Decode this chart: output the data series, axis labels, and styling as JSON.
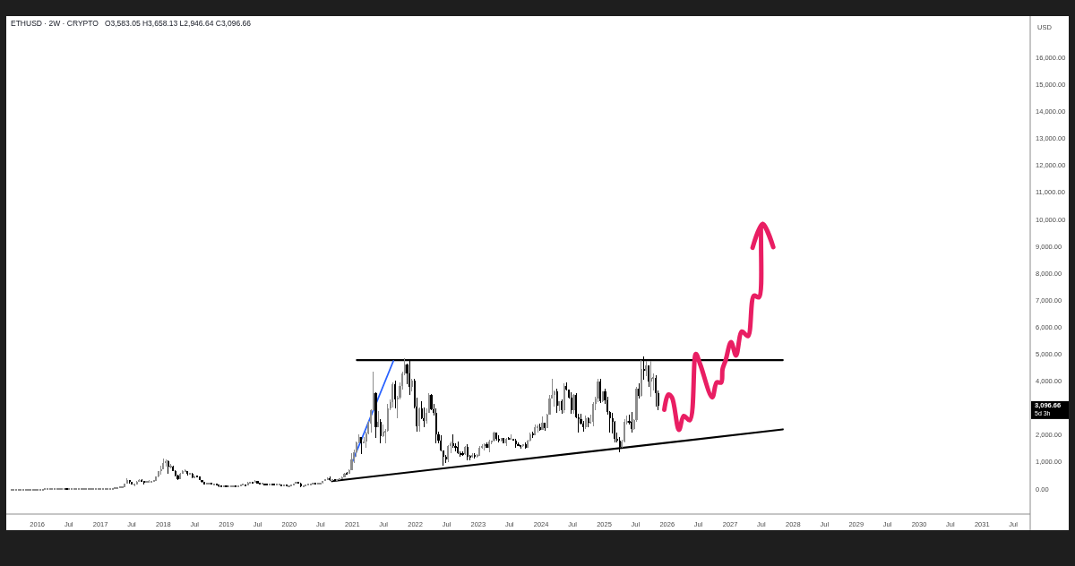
{
  "chart_data": {
    "type": "candlestick",
    "title": "ETHUSD · 2W · CRYPTO",
    "subtitle": "O3,583.05 H3,658.13 L2,946.64 C3,096.66",
    "ylabel": "USD",
    "x": [
      "2015-08-03",
      "2015-08-17",
      "2015-08-31",
      "2015-09-14",
      "2015-09-28",
      "2015-10-12",
      "2015-10-26",
      "2015-11-09",
      "2015-11-23",
      "2015-12-07",
      "2015-12-21",
      "2016-01-04",
      "2016-01-18",
      "2016-02-01",
      "2016-02-15",
      "2016-02-29",
      "2016-03-14",
      "2016-03-28",
      "2016-04-11",
      "2016-04-25",
      "2016-05-09",
      "2016-05-23",
      "2016-06-06",
      "2016-06-20",
      "2016-07-04",
      "2016-07-18",
      "2016-08-01",
      "2016-08-15",
      "2016-08-29",
      "2016-09-12",
      "2016-09-26",
      "2016-10-10",
      "2016-10-24",
      "2016-11-07",
      "2016-11-21",
      "2016-12-05",
      "2016-12-19",
      "2017-01-02",
      "2017-01-16",
      "2017-01-30",
      "2017-02-13",
      "2017-02-27",
      "2017-03-13",
      "2017-03-27",
      "2017-04-10",
      "2017-04-24",
      "2017-05-08",
      "2017-05-22",
      "2017-06-05",
      "2017-06-19",
      "2017-07-03",
      "2017-07-17",
      "2017-07-31",
      "2017-08-14",
      "2017-08-28",
      "2017-09-11",
      "2017-09-25",
      "2017-10-09",
      "2017-10-23",
      "2017-11-06",
      "2017-11-20",
      "2017-12-04",
      "2017-12-18",
      "2018-01-01",
      "2018-01-15",
      "2018-01-29",
      "2018-02-12",
      "2018-02-26",
      "2018-03-12",
      "2018-03-26",
      "2018-04-09",
      "2018-04-23",
      "2018-05-07",
      "2018-05-21",
      "2018-06-04",
      "2018-06-18",
      "2018-07-02",
      "2018-07-16",
      "2018-07-30",
      "2018-08-13",
      "2018-08-27",
      "2018-09-10",
      "2018-09-24",
      "2018-10-08",
      "2018-10-22",
      "2018-11-05",
      "2018-11-19",
      "2018-12-03",
      "2018-12-17",
      "2018-12-31",
      "2019-01-14",
      "2019-01-28",
      "2019-02-11",
      "2019-02-25",
      "2019-03-11",
      "2019-03-25",
      "2019-04-08",
      "2019-04-22",
      "2019-05-06",
      "2019-05-20",
      "2019-06-03",
      "2019-06-17",
      "2019-07-01",
      "2019-07-15",
      "2019-07-29",
      "2019-08-12",
      "2019-08-26",
      "2019-09-09",
      "2019-09-23",
      "2019-10-07",
      "2019-10-21",
      "2019-11-04",
      "2019-11-18",
      "2019-12-02",
      "2019-12-16",
      "2019-12-30",
      "2020-01-13",
      "2020-01-27",
      "2020-02-10",
      "2020-02-24",
      "2020-03-09",
      "2020-03-23",
      "2020-04-06",
      "2020-04-20",
      "2020-05-04",
      "2020-05-18",
      "2020-06-01",
      "2020-06-15",
      "2020-06-29",
      "2020-07-13",
      "2020-07-27",
      "2020-08-10",
      "2020-08-24",
      "2020-09-07",
      "2020-09-21",
      "2020-10-05",
      "2020-10-19",
      "2020-11-02",
      "2020-11-16",
      "2020-11-30",
      "2020-12-14",
      "2020-12-28",
      "2021-01-11",
      "2021-01-25",
      "2021-02-08",
      "2021-02-22",
      "2021-03-08",
      "2021-03-22",
      "2021-04-05",
      "2021-04-19",
      "2021-05-03",
      "2021-05-17",
      "2021-05-31",
      "2021-06-14",
      "2021-06-28",
      "2021-07-12",
      "2021-07-26",
      "2021-08-09",
      "2021-08-23",
      "2021-09-06",
      "2021-09-20",
      "2021-10-04",
      "2021-10-18",
      "2021-11-01",
      "2021-11-15",
      "2021-11-29",
      "2021-12-13",
      "2021-12-27",
      "2022-01-10",
      "2022-01-24",
      "2022-02-07",
      "2022-02-21",
      "2022-03-07",
      "2022-03-21",
      "2022-04-04",
      "2022-04-18",
      "2022-05-02",
      "2022-05-16",
      "2022-05-30",
      "2022-06-13",
      "2022-06-27",
      "2022-07-11",
      "2022-07-25",
      "2022-08-08",
      "2022-08-22",
      "2022-09-05",
      "2022-09-19",
      "2022-10-03",
      "2022-10-17",
      "2022-10-31",
      "2022-11-14",
      "2022-11-28",
      "2022-12-12",
      "2022-12-26",
      "2023-01-09",
      "2023-01-23",
      "2023-02-06",
      "2023-02-20",
      "2023-03-06",
      "2023-03-20",
      "2023-04-03",
      "2023-04-17",
      "2023-05-01",
      "2023-05-15",
      "2023-05-29",
      "2023-06-12",
      "2023-06-26",
      "2023-07-10",
      "2023-07-24",
      "2023-08-07",
      "2023-08-21",
      "2023-09-04",
      "2023-09-18",
      "2023-10-02",
      "2023-10-16",
      "2023-10-30",
      "2023-11-13",
      "2023-11-27",
      "2023-12-11",
      "2023-12-25",
      "2024-01-08",
      "2024-01-22",
      "2024-02-05",
      "2024-02-19",
      "2024-03-04",
      "2024-03-18",
      "2024-04-01",
      "2024-04-15",
      "2024-04-29",
      "2024-05-13",
      "2024-05-27",
      "2024-06-10",
      "2024-06-24",
      "2024-07-08",
      "2024-07-22",
      "2024-08-05",
      "2024-08-19",
      "2024-09-02",
      "2024-09-16",
      "2024-09-30",
      "2024-10-14",
      "2024-10-28",
      "2024-11-11",
      "2024-11-25",
      "2024-12-09",
      "2024-12-23",
      "2025-01-06",
      "2025-01-20",
      "2025-02-03",
      "2025-02-17",
      "2025-03-03",
      "2025-03-17",
      "2025-03-31",
      "2025-04-14",
      "2025-04-28",
      "2025-05-12",
      "2025-05-26",
      "2025-06-09",
      "2025-06-23",
      "2025-07-07",
      "2025-07-21",
      "2025-08-04",
      "2025-08-18",
      "2025-09-01",
      "2025-09-15",
      "2025-09-29",
      "2025-10-13",
      "2025-10-27",
      "2025-11-10"
    ],
    "ohlc": [
      [
        0,
        0,
        0,
        0
      ],
      [
        0,
        0,
        0,
        0
      ],
      [
        0,
        0,
        0,
        0
      ],
      [
        0,
        0,
        0,
        0
      ],
      [
        0,
        0,
        0,
        0
      ],
      [
        0,
        0,
        0,
        0
      ],
      [
        0,
        0,
        0,
        0
      ],
      [
        0,
        0,
        0,
        0
      ],
      [
        0,
        0,
        0,
        0
      ],
      [
        0,
        0,
        0,
        0
      ],
      [
        0,
        0,
        0,
        0
      ],
      [
        0,
        0,
        0,
        0
      ],
      [
        0,
        0,
        0,
        0
      ],
      [
        0,
        0,
        0,
        0
      ],
      [
        0,
        10,
        0,
        10
      ],
      [
        10,
        20,
        10,
        10
      ],
      [
        10,
        20,
        10,
        10
      ],
      [
        10,
        10,
        10,
        10
      ],
      [
        10,
        10,
        10,
        10
      ],
      [
        10,
        10,
        10,
        10
      ],
      [
        10,
        10,
        10,
        10
      ],
      [
        10,
        10,
        10,
        10
      ],
      [
        10,
        20,
        10,
        20
      ],
      [
        20,
        20,
        10,
        10
      ],
      [
        10,
        10,
        10,
        10
      ],
      [
        10,
        10,
        10,
        10
      ],
      [
        10,
        10,
        10,
        10
      ],
      [
        10,
        10,
        10,
        10
      ],
      [
        10,
        10,
        10,
        10
      ],
      [
        10,
        10,
        10,
        10
      ],
      [
        10,
        10,
        10,
        10
      ],
      [
        10,
        10,
        10,
        10
      ],
      [
        10,
        10,
        10,
        10
      ],
      [
        10,
        10,
        10,
        10
      ],
      [
        10,
        10,
        10,
        10
      ],
      [
        10,
        10,
        10,
        10
      ],
      [
        10,
        10,
        10,
        10
      ],
      [
        10,
        10,
        10,
        10
      ],
      [
        10,
        10,
        10,
        10
      ],
      [
        10,
        10,
        10,
        10
      ],
      [
        10,
        10,
        10,
        10
      ],
      [
        10,
        20,
        10,
        20
      ],
      [
        20,
        50,
        20,
        40
      ],
      [
        40,
        50,
        40,
        50
      ],
      [
        50,
        50,
        40,
        50
      ],
      [
        50,
        90,
        50,
        90
      ],
      [
        90,
        100,
        80,
        100
      ],
      [
        100,
        230,
        100,
        230
      ],
      [
        230,
        420,
        230,
        360
      ],
      [
        360,
        360,
        220,
        300
      ],
      [
        300,
        300,
        190,
        200
      ],
      [
        200,
        230,
        130,
        200
      ],
      [
        200,
        320,
        200,
        300
      ],
      [
        300,
        370,
        280,
        350
      ],
      [
        350,
        390,
        280,
        300
      ],
      [
        300,
        300,
        200,
        290
      ],
      [
        290,
        310,
        280,
        300
      ],
      [
        300,
        340,
        290,
        300
      ],
      [
        300,
        310,
        290,
        300
      ],
      [
        300,
        340,
        290,
        330
      ],
      [
        330,
        480,
        330,
        470
      ],
      [
        470,
        700,
        440,
        690
      ],
      [
        690,
        880,
        560,
        750
      ],
      [
        750,
        1150,
        740,
        1000
      ],
      [
        1000,
        1100,
        850,
        1050
      ],
      [
        1050,
        1080,
        570,
        850
      ],
      [
        850,
        960,
        780,
        860
      ],
      [
        860,
        880,
        680,
        700
      ],
      [
        700,
        720,
        480,
        520
      ],
      [
        520,
        560,
        360,
        400
      ],
      [
        400,
        620,
        380,
        590
      ],
      [
        590,
        720,
        590,
        690
      ],
      [
        690,
        760,
        640,
        690
      ],
      [
        690,
        700,
        520,
        580
      ],
      [
        580,
        630,
        560,
        600
      ],
      [
        600,
        610,
        420,
        450
      ],
      [
        450,
        510,
        440,
        480
      ],
      [
        480,
        510,
        440,
        470
      ],
      [
        470,
        470,
        340,
        350
      ],
      [
        350,
        350,
        250,
        290
      ],
      [
        290,
        300,
        190,
        200
      ],
      [
        200,
        230,
        170,
        220
      ],
      [
        220,
        240,
        200,
        230
      ],
      [
        230,
        230,
        190,
        200
      ],
      [
        200,
        210,
        190,
        200
      ],
      [
        200,
        220,
        170,
        180
      ],
      [
        180,
        180,
        100,
        120
      ],
      [
        120,
        120,
        80,
        90
      ],
      [
        90,
        150,
        80,
        130
      ],
      [
        130,
        160,
        110,
        120
      ],
      [
        120,
        130,
        110,
        120
      ],
      [
        120,
        120,
        100,
        120
      ],
      [
        120,
        160,
        120,
        140
      ],
      [
        140,
        140,
        120,
        130
      ],
      [
        130,
        150,
        130,
        140
      ],
      [
        140,
        190,
        130,
        170
      ],
      [
        170,
        190,
        160,
        170
      ],
      [
        170,
        180,
        150,
        160
      ],
      [
        160,
        280,
        160,
        250
      ],
      [
        250,
        290,
        230,
        270
      ],
      [
        270,
        280,
        220,
        260
      ],
      [
        260,
        360,
        260,
        310
      ],
      [
        310,
        320,
        220,
        230
      ],
      [
        230,
        240,
        190,
        210
      ],
      [
        210,
        240,
        200,
        210
      ],
      [
        210,
        220,
        170,
        190
      ],
      [
        190,
        190,
        160,
        180
      ],
      [
        180,
        220,
        170,
        200
      ],
      [
        200,
        200,
        150,
        180
      ],
      [
        180,
        200,
        160,
        170
      ],
      [
        170,
        200,
        160,
        180
      ],
      [
        180,
        200,
        170,
        180
      ],
      [
        180,
        180,
        140,
        150
      ],
      [
        150,
        160,
        140,
        150
      ],
      [
        150,
        150,
        120,
        130
      ],
      [
        130,
        150,
        130,
        140
      ],
      [
        140,
        180,
        140,
        170
      ],
      [
        170,
        230,
        170,
        220
      ],
      [
        220,
        290,
        220,
        270
      ],
      [
        270,
        270,
        210,
        230
      ],
      [
        230,
        240,
        90,
        130
      ],
      [
        130,
        150,
        120,
        140
      ],
      [
        140,
        190,
        140,
        170
      ],
      [
        170,
        220,
        170,
        200
      ],
      [
        200,
        220,
        180,
        200
      ],
      [
        200,
        250,
        200,
        240
      ],
      [
        240,
        250,
        220,
        230
      ],
      [
        230,
        250,
        220,
        230
      ],
      [
        230,
        250,
        220,
        240
      ],
      [
        240,
        330,
        230,
        320
      ],
      [
        320,
        400,
        320,
        380
      ],
      [
        380,
        440,
        370,
        390
      ],
      [
        390,
        490,
        310,
        350
      ],
      [
        350,
        390,
        320,
        380
      ],
      [
        380,
        390,
        310,
        350
      ],
      [
        350,
        390,
        340,
        380
      ],
      [
        380,
        420,
        370,
        390
      ],
      [
        390,
        470,
        370,
        460
      ],
      [
        460,
        620,
        440,
        600
      ],
      [
        600,
        640,
        540,
        590
      ],
      [
        590,
        750,
        580,
        730
      ],
      [
        730,
        1350,
        710,
        1100
      ],
      [
        1100,
        1480,
        1000,
        1380
      ],
      [
        1380,
        1780,
        1230,
        1740
      ],
      [
        1740,
        2040,
        1700,
        1940
      ],
      [
        1940,
        1950,
        1300,
        1720
      ],
      [
        1720,
        1950,
        1720,
        1780
      ],
      [
        1780,
        2150,
        1550,
        2080
      ],
      [
        2080,
        2550,
        2040,
        2440
      ],
      [
        2440,
        2980,
        2100,
        2950
      ],
      [
        2950,
        4380,
        2950,
        3580
      ],
      [
        3580,
        3600,
        1900,
        2300
      ],
      [
        2300,
        2900,
        2300,
        2500
      ],
      [
        2500,
        2600,
        1700,
        1980
      ],
      [
        1980,
        2400,
        1960,
        2130
      ],
      [
        2130,
        2260,
        1720,
        2190
      ],
      [
        2190,
        3180,
        2150,
        3010
      ],
      [
        3010,
        3330,
        2950,
        3240
      ],
      [
        3240,
        3970,
        3050,
        3900
      ],
      [
        3900,
        4030,
        3000,
        3330
      ],
      [
        3330,
        3480,
        2650,
        3420
      ],
      [
        3420,
        3970,
        3330,
        3850
      ],
      [
        3850,
        4380,
        3700,
        4300
      ],
      [
        4300,
        4870,
        4250,
        4650
      ],
      [
        4650,
        4660,
        3920,
        4300
      ],
      [
        4300,
        4780,
        3500,
        3800
      ],
      [
        3800,
        4120,
        3650,
        4050
      ],
      [
        4050,
        4100,
        3000,
        3080
      ],
      [
        3080,
        3420,
        2160,
        2330
      ],
      [
        2330,
        3050,
        2160,
        3000
      ],
      [
        3000,
        3280,
        2600,
        2630
      ],
      [
        2630,
        3050,
        2300,
        2550
      ],
      [
        2550,
        3000,
        2440,
        2860
      ],
      [
        2860,
        3580,
        2860,
        3520
      ],
      [
        3520,
        3550,
        2950,
        2990
      ],
      [
        2990,
        3190,
        2760,
        2830
      ],
      [
        2830,
        3000,
        1700,
        2050
      ],
      [
        2050,
        2160,
        1730,
        1820
      ],
      [
        1820,
        2000,
        1420,
        1440
      ],
      [
        1440,
        1450,
        880,
        1200
      ],
      [
        1200,
        1280,
        1000,
        1100
      ],
      [
        1100,
        1660,
        1020,
        1620
      ],
      [
        1620,
        1790,
        1350,
        1700
      ],
      [
        1700,
        2030,
        1560,
        1620
      ],
      [
        1620,
        1720,
        1420,
        1570
      ],
      [
        1570,
        1790,
        1300,
        1340
      ],
      [
        1340,
        1400,
        1220,
        1320
      ],
      [
        1320,
        1400,
        1260,
        1300
      ],
      [
        1300,
        1630,
        1270,
        1570
      ],
      [
        1570,
        1680,
        1070,
        1220
      ],
      [
        1220,
        1290,
        1080,
        1200
      ],
      [
        1200,
        1350,
        1190,
        1270
      ],
      [
        1270,
        1350,
        1160,
        1220
      ],
      [
        1220,
        1300,
        1190,
        1260
      ],
      [
        1260,
        1600,
        1260,
        1550
      ],
      [
        1550,
        1680,
        1520,
        1630
      ],
      [
        1630,
        1700,
        1460,
        1690
      ],
      [
        1690,
        1750,
        1540,
        1560
      ],
      [
        1560,
        1840,
        1370,
        1790
      ],
      [
        1790,
        1830,
        1680,
        1800
      ],
      [
        1800,
        2130,
        1770,
        2100
      ],
      [
        2100,
        2120,
        1800,
        1880
      ],
      [
        1880,
        2020,
        1760,
        1800
      ],
      [
        1800,
        1930,
        1780,
        1900
      ],
      [
        1900,
        1930,
        1700,
        1720
      ],
      [
        1720,
        1900,
        1620,
        1880
      ],
      [
        1880,
        1960,
        1840,
        1870
      ],
      [
        1870,
        2030,
        1850,
        1890
      ],
      [
        1890,
        1890,
        1820,
        1830
      ],
      [
        1830,
        1870,
        1550,
        1670
      ],
      [
        1670,
        1750,
        1610,
        1630
      ],
      [
        1630,
        1660,
        1530,
        1620
      ],
      [
        1620,
        1680,
        1570,
        1680
      ],
      [
        1680,
        1750,
        1520,
        1550
      ],
      [
        1550,
        1860,
        1540,
        1810
      ],
      [
        1810,
        2100,
        1780,
        2050
      ],
      [
        2050,
        2140,
        1930,
        2020
      ],
      [
        2020,
        2420,
        2000,
        2300
      ],
      [
        2300,
        2400,
        2120,
        2300
      ],
      [
        2300,
        2450,
        2170,
        2210
      ],
      [
        2210,
        2720,
        2200,
        2470
      ],
      [
        2470,
        2480,
        2170,
        2290
      ],
      [
        2290,
        2800,
        2290,
        2780
      ],
      [
        2780,
        3520,
        2780,
        3380
      ],
      [
        3380,
        4090,
        3360,
        3520
      ],
      [
        3520,
        3680,
        3060,
        3640
      ],
      [
        3640,
        3730,
        2850,
        3100
      ],
      [
        3100,
        3290,
        2900,
        3260
      ],
      [
        3260,
        3350,
        2810,
        2930
      ],
      [
        2930,
        3940,
        2860,
        3830
      ],
      [
        3830,
        3980,
        3660,
        3700
      ],
      [
        3700,
        3720,
        3360,
        3420
      ],
      [
        3420,
        3600,
        2820,
        2930
      ],
      [
        2930,
        3530,
        2820,
        3520
      ],
      [
        3520,
        3560,
        2630,
        2690
      ],
      [
        2690,
        2800,
        2110,
        2610
      ],
      [
        2610,
        2820,
        2400,
        2430
      ],
      [
        2430,
        2560,
        2150,
        2310
      ],
      [
        2310,
        2730,
        2260,
        2660
      ],
      [
        2660,
        2670,
        2310,
        2470
      ],
      [
        2470,
        2770,
        2450,
        2510
      ],
      [
        2510,
        3250,
        2350,
        3180
      ],
      [
        3180,
        3450,
        2960,
        3360
      ],
      [
        3360,
        4090,
        3250,
        4000
      ],
      [
        4000,
        4110,
        3210,
        3280
      ],
      [
        3280,
        3640,
        3250,
        3640
      ],
      [
        3640,
        3750,
        3160,
        3310
      ],
      [
        3310,
        3450,
        2780,
        2870
      ],
      [
        2870,
        2920,
        2120,
        2660
      ],
      [
        2660,
        2850,
        2080,
        2510
      ],
      [
        2510,
        2550,
        1760,
        1890
      ],
      [
        1890,
        2110,
        1760,
        1800
      ],
      [
        1800,
        1960,
        1390,
        1580
      ],
      [
        1580,
        1860,
        1540,
        1790
      ],
      [
        1790,
        2620,
        1750,
        2510
      ],
      [
        2510,
        2740,
        2400,
        2530
      ],
      [
        2530,
        2790,
        2400,
        2510
      ],
      [
        2510,
        2880,
        2120,
        2230
      ],
      [
        2230,
        2600,
        2200,
        2570
      ],
      [
        2570,
        3800,
        2500,
        3750
      ],
      [
        3750,
        3940,
        3360,
        3490
      ],
      [
        3490,
        4790,
        3440,
        4470
      ],
      [
        4470,
        4950,
        4060,
        4390
      ],
      [
        4390,
        4770,
        4200,
        4600
      ],
      [
        4600,
        4620,
        3820,
        4020
      ],
      [
        4020,
        4760,
        3440,
        4150
      ],
      [
        4150,
        4300,
        3680,
        4150
      ],
      [
        4150,
        4250,
        3060,
        3583.05
      ],
      [
        3583.05,
        3658.13,
        2946.64,
        3096.66
      ]
    ],
    "colors": [
      "#8c8c8c",
      "#8c8c8c",
      "#8c8c8c",
      "#8c8c8c",
      "#8c8c8c",
      "#8c8c8c",
      "#8c8c8c",
      "#8c8c8c",
      "#8c8c8c",
      "#8c8c8c",
      "#8c8c8c",
      "#8c8c8c",
      "#8c8c8c",
      "#8c8c8c",
      "#8c8c8c",
      "#8c8c8c",
      "#8c8c8c",
      "#8c8c8c",
      "#8c8c8c",
      "#8c8c8c",
      "#8c8c8c",
      "#8c8c8c",
      "#8c8c8c",
      "#000000",
      "#8c8c8c",
      "#8c8c8c",
      "#8c8c8c",
      "#8c8c8c",
      "#8c8c8c",
      "#8c8c8c",
      "#8c8c8c",
      "#8c8c8c",
      "#8c8c8c",
      "#8c8c8c",
      "#8c8c8c",
      "#8c8c8c",
      "#8c8c8c",
      "#8c8c8c",
      "#8c8c8c",
      "#8c8c8c",
      "#8c8c8c",
      "#8c8c8c",
      "#8c8c8c",
      "#8c8c8c",
      "#8c8c8c",
      "#8c8c8c",
      "#8c8c8c",
      "#8c8c8c",
      "#8c8c8c",
      "#000000",
      "#000000",
      "#8c8c8c",
      "#8c8c8c",
      "#8c8c8c",
      "#000000",
      "#000000",
      "#8c8c8c",
      "#8c8c8c",
      "#8c8c8c",
      "#8c8c8c",
      "#8c8c8c",
      "#8c8c8c",
      "#8c8c8c",
      "#8c8c8c",
      "#8c8c8c",
      "#000000",
      "#8c8c8c",
      "#000000",
      "#000000",
      "#000000",
      "#8c8c8c",
      "#8c8c8c",
      "#8c8c8c",
      "#000000",
      "#8c8c8c",
      "#000000",
      "#8c8c8c",
      "#000000",
      "#000000",
      "#000000",
      "#000000",
      "#8c8c8c",
      "#8c8c8c",
      "#000000",
      "#8c8c8c",
      "#000000",
      "#000000",
      "#000000",
      "#8c8c8c",
      "#000000",
      "#8c8c8c",
      "#8c8c8c",
      "#8c8c8c",
      "#000000",
      "#8c8c8c",
      "#8c8c8c",
      "#8c8c8c",
      "#000000",
      "#8c8c8c",
      "#8c8c8c",
      "#000000",
      "#8c8c8c",
      "#000000",
      "#000000",
      "#8c8c8c",
      "#000000",
      "#000000",
      "#8c8c8c",
      "#000000",
      "#000000",
      "#8c8c8c",
      "#8c8c8c",
      "#000000",
      "#8c8c8c",
      "#000000",
      "#8c8c8c",
      "#8c8c8c",
      "#8c8c8c",
      "#8c8c8c",
      "#000000",
      "#000000",
      "#8c8c8c",
      "#8c8c8c",
      "#8c8c8c",
      "#8c8c8c",
      "#8c8c8c",
      "#000000",
      "#8c8c8c",
      "#8c8c8c",
      "#8c8c8c",
      "#8c8c8c",
      "#8c8c8c",
      "#000000",
      "#8c8c8c",
      "#000000",
      "#8c8c8c",
      "#8c8c8c",
      "#8c8c8c",
      "#8c8c8c",
      "#000000",
      "#8c8c8c",
      "#8c8c8c",
      "#8c8c8c",
      "#8c8c8c",
      "#8c8c8c",
      "#000000",
      "#8c8c8c",
      "#8c8c8c",
      "#8c8c8c",
      "#8c8c8c",
      "#8c8c8c",
      "#000000",
      "#8c8c8c",
      "#000000",
      "#8c8c8c",
      "#8c8c8c",
      "#8c8c8c",
      "#8c8c8c",
      "#8c8c8c",
      "#000000",
      "#8c8c8c",
      "#8c8c8c",
      "#8c8c8c",
      "#8c8c8c",
      "#000000",
      "#000000",
      "#8c8c8c",
      "#000000",
      "#000000",
      "#8c8c8c",
      "#000000",
      "#000000",
      "#8c8c8c",
      "#8c8c8c",
      "#000000",
      "#000000",
      "#000000",
      "#000000",
      "#000000",
      "#000000",
      "#000000",
      "#8c8c8c",
      "#8c8c8c",
      "#000000",
      "#000000",
      "#000000",
      "#000000",
      "#000000",
      "#8c8c8c",
      "#000000",
      "#000000",
      "#8c8c8c",
      "#000000",
      "#8c8c8c",
      "#8c8c8c",
      "#8c8c8c",
      "#8c8c8c",
      "#000000",
      "#8c8c8c",
      "#8c8c8c",
      "#8c8c8c",
      "#000000",
      "#000000",
      "#8c8c8c",
      "#000000",
      "#8c8c8c",
      "#000000",
      "#8c8c8c",
      "#000000",
      "#000000",
      "#000000",
      "#000000",
      "#8c8c8c",
      "#000000",
      "#8c8c8c",
      "#8c8c8c",
      "#000000",
      "#8c8c8c",
      "#8c8c8c",
      "#000000",
      "#8c8c8c",
      "#000000",
      "#8c8c8c",
      "#8c8c8c",
      "#8c8c8c",
      "#8c8c8c",
      "#000000",
      "#8c8c8c",
      "#000000",
      "#8c8c8c",
      "#000000",
      "#000000",
      "#000000",
      "#8c8c8c",
      "#000000",
      "#000000",
      "#000000",
      "#000000",
      "#8c8c8c",
      "#000000",
      "#8c8c8c",
      "#8c8c8c",
      "#8c8c8c",
      "#8c8c8c",
      "#000000",
      "#8c8c8c",
      "#000000",
      "#000000",
      "#000000",
      "#000000",
      "#000000",
      "#000000",
      "#000000",
      "#8c8c8c",
      "#8c8c8c",
      "#8c8c8c",
      "#000000",
      "#000000",
      "#8c8c8c",
      "#8c8c8c",
      "#000000",
      "#8c8c8c",
      "#000000",
      "#8c8c8c",
      "#000000",
      "#8c8c8c",
      "#8c8c8c",
      "#000000",
      "#000000"
    ],
    "series": [
      {
        "type": "line",
        "x": [
          "2020-09-05",
          "2027-11-02"
        ],
        "values": [
          310,
          2230
        ],
        "color": "#000000"
      },
      {
        "type": "line",
        "x": [
          "2021-01-27",
          "2027-11-02"
        ],
        "values": [
          4800,
          4800
        ],
        "color": "#000000"
      },
      {
        "type": "line",
        "x": [
          "2020-12-29",
          "2021-08-27"
        ],
        "values": [
          980,
          4770
        ],
        "color": "#2962ff"
      },
      {
        "type": "line",
        "x": [
          "2025-12-15",
          "2026-01-07",
          "2026-01-28",
          "2026-03-10",
          "2026-04-07",
          "2026-05-12",
          "2026-06-16",
          "2026-07-12",
          "2026-09-19",
          "2026-10-15",
          "2026-11-10",
          "2026-11-18",
          "2026-12-06",
          "2027-01-06",
          "2027-02-04",
          "2027-03-10",
          "2027-04-14",
          "2027-05-19",
          "2027-06-17",
          "2027-07-09",
          "2027-09-08",
          "2027-07-09",
          "2027-05-11"
        ],
        "values": [
          2960,
          3520,
          3420,
          2210,
          2730,
          2570,
          5030,
          4630,
          3420,
          3970,
          3970,
          4470,
          4800,
          5470,
          4970,
          5860,
          5690,
          7190,
          7130,
          9850,
          8990,
          9850,
          8970
        ],
        "color": "#e91e63"
      }
    ],
    "annotations": [
      "3,096.66",
      "5d 3h"
    ],
    "xlim": [
      "2015-07-05",
      "2031-10-07"
    ],
    "xticks": [
      {
        "value": "2016-01-01",
        "label": "2016"
      },
      {
        "value": "2016-07-01",
        "label": "Jul"
      },
      {
        "value": "2017-01-01",
        "label": "2017"
      },
      {
        "value": "2017-07-01",
        "label": "Jul"
      },
      {
        "value": "2018-01-01",
        "label": "2018"
      },
      {
        "value": "2018-07-01",
        "label": "Jul"
      },
      {
        "value": "2019-01-01",
        "label": "2019"
      },
      {
        "value": "2019-07-01",
        "label": "Jul"
      },
      {
        "value": "2020-01-01",
        "label": "2020"
      },
      {
        "value": "2020-07-01",
        "label": "Jul"
      },
      {
        "value": "2021-01-01",
        "label": "2021"
      },
      {
        "value": "2021-07-01",
        "label": "Jul"
      },
      {
        "value": "2022-01-01",
        "label": "2022"
      },
      {
        "value": "2022-07-01",
        "label": "Jul"
      },
      {
        "value": "2023-01-01",
        "label": "2023"
      },
      {
        "value": "2023-07-01",
        "label": "Jul"
      },
      {
        "value": "2024-01-01",
        "label": "2024"
      },
      {
        "value": "2024-07-01",
        "label": "Jul"
      },
      {
        "value": "2025-01-01",
        "label": "2025"
      },
      {
        "value": "2025-07-01",
        "label": "Jul"
      },
      {
        "value": "2026-01-01",
        "label": "2026"
      },
      {
        "value": "2026-07-01",
        "label": "Jul"
      },
      {
        "value": "2027-01-01",
        "label": "2027"
      },
      {
        "value": "2027-07-01",
        "label": "Jul"
      },
      {
        "value": "2028-01-01",
        "label": "2028"
      },
      {
        "value": "2028-07-01",
        "label": "Jul"
      },
      {
        "value": "2029-01-01",
        "label": "2029"
      },
      {
        "value": "2029-07-01",
        "label": "Jul"
      },
      {
        "value": "2030-01-01",
        "label": "2030"
      },
      {
        "value": "2030-07-01",
        "label": "Jul"
      },
      {
        "value": "2031-01-01",
        "label": "2031"
      },
      {
        "value": "2031-07-01",
        "label": "Jul"
      }
    ],
    "ylim": [
      -910,
      17560
    ],
    "yticks": [
      {
        "value": 0,
        "label": "0.00"
      },
      {
        "value": 1000,
        "label": "1,000.00"
      },
      {
        "value": 2000,
        "label": "2,000.00"
      },
      {
        "value": 4000,
        "label": "4,000.00"
      },
      {
        "value": 5000,
        "label": "5,000.00"
      },
      {
        "value": 6000,
        "label": "6,000.00"
      },
      {
        "value": 7000,
        "label": "7,000.00"
      },
      {
        "value": 8000,
        "label": "8,000.00"
      },
      {
        "value": 9000,
        "label": "9,000.00"
      },
      {
        "value": 10000,
        "label": "10,000.00"
      },
      {
        "value": 11000,
        "label": "11,000.00"
      },
      {
        "value": 12000,
        "label": "12,000.00"
      },
      {
        "value": 13000,
        "label": "13,000.00"
      },
      {
        "value": 14000,
        "label": "14,000.00"
      },
      {
        "value": 15000,
        "label": "15,000.00"
      },
      {
        "value": 16000,
        "label": "16,000.00"
      }
    ]
  }
}
